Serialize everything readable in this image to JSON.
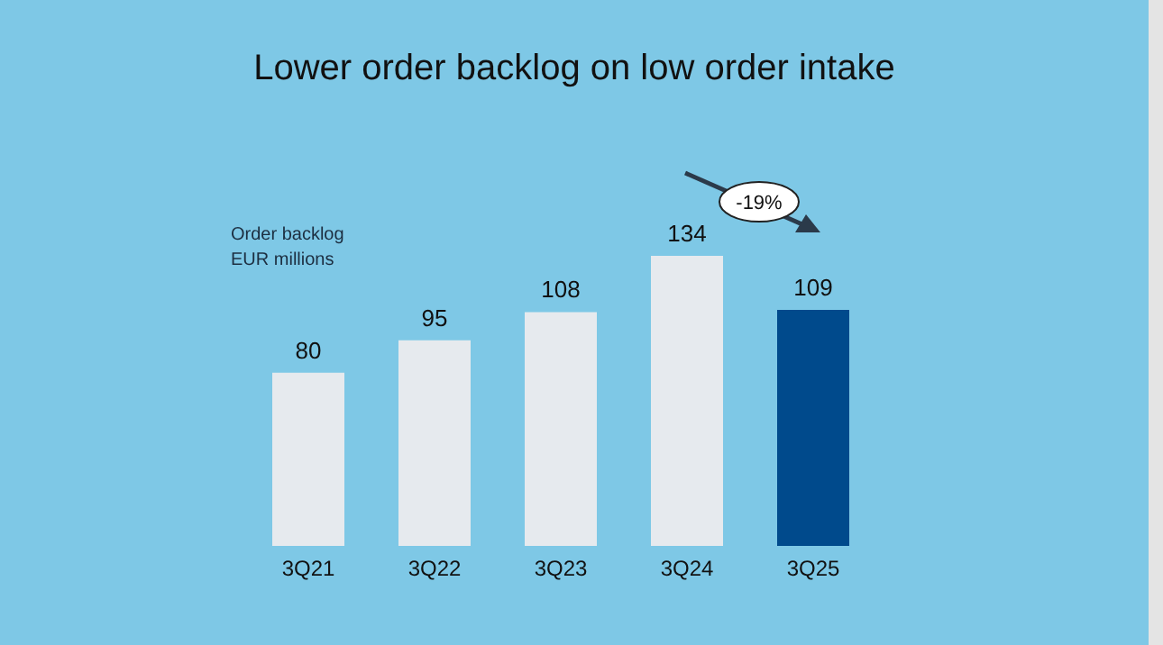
{
  "chart_data": {
    "type": "bar",
    "title": "Lower order backlog on low order intake",
    "ylabel": "Order backlog\nEUR millions",
    "categories": [
      "3Q21",
      "3Q22",
      "3Q23",
      "3Q24",
      "3Q25"
    ],
    "values": [
      80,
      95,
      108,
      134,
      109
    ],
    "colors": [
      "#e6eaee",
      "#e6eaee",
      "#e6eaee",
      "#e6eaee",
      "#004a8c"
    ],
    "data_labels": true,
    "grid": false,
    "legend": false,
    "annotations": [
      "-19%"
    ]
  }
}
